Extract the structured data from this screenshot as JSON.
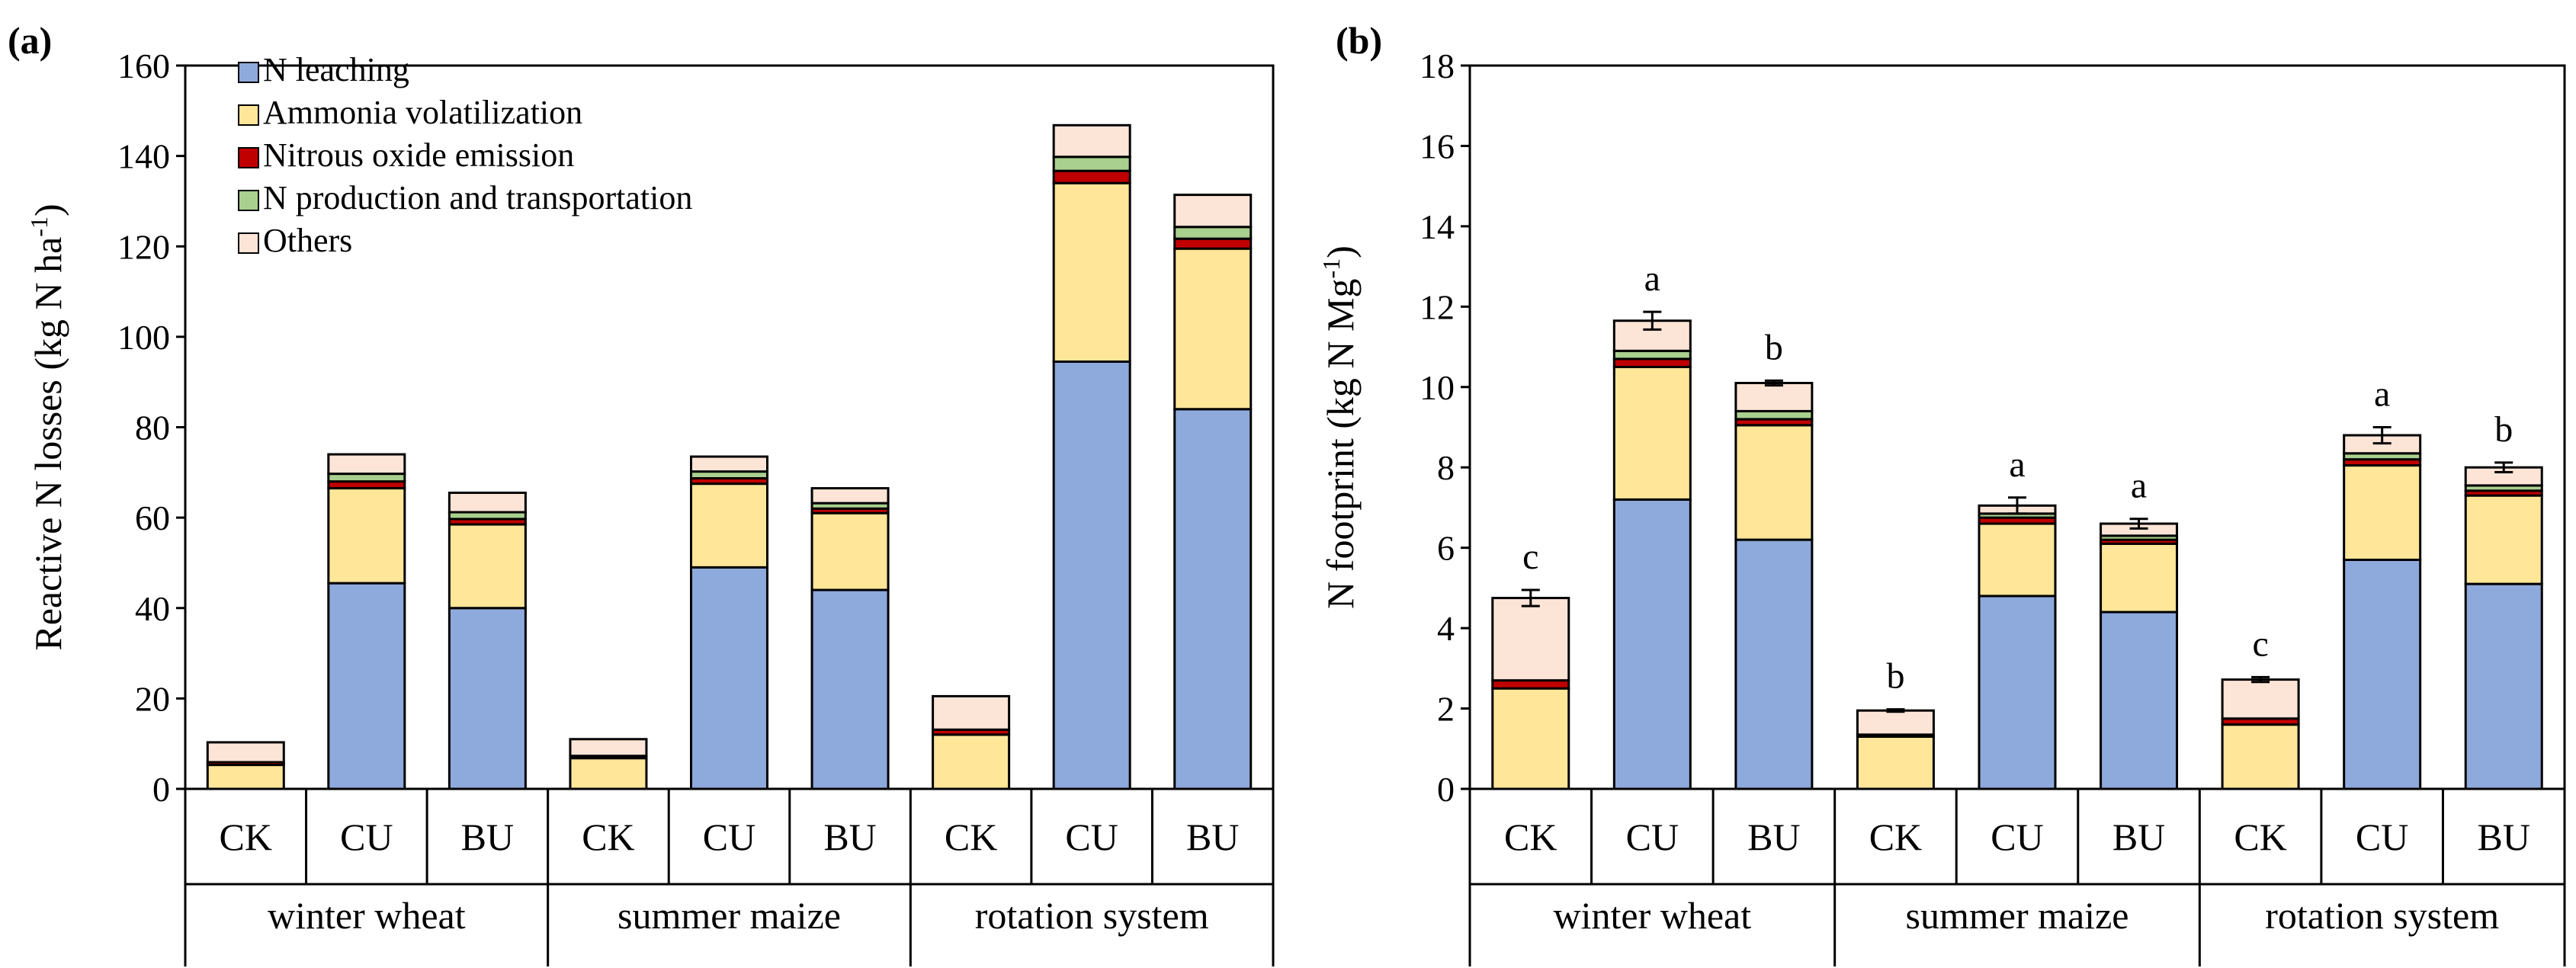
{
  "chart_data": [
    {
      "type": "bar",
      "stacked": true,
      "panel_label": "(a)",
      "title": "",
      "ylabel": "Reactive N losses (kg N ha",
      "ylabel_sup": "-1",
      "ylabel_end": ")",
      "ylim": [
        0,
        160
      ],
      "yticks": [
        0,
        20,
        40,
        60,
        80,
        100,
        120,
        140,
        160
      ],
      "groups": [
        "winter wheat",
        "summer maize",
        "rotation system"
      ],
      "categories": [
        "CK",
        "CU",
        "BU",
        "CK",
        "CU",
        "BU",
        "CK",
        "CU",
        "BU"
      ],
      "series": [
        {
          "name": "N leaching",
          "color": "#8EA9DB",
          "values": [
            0,
            45.5,
            40,
            0,
            49,
            44,
            0,
            94.5,
            84
          ]
        },
        {
          "name": "Ammonia volatilization",
          "color": "#FFE699",
          "values": [
            5.3,
            21,
            18.5,
            6.8,
            18.5,
            17,
            12,
            39.5,
            35.5
          ]
        },
        {
          "name": "Nitrous oxide emission",
          "color": "#C00000",
          "values": [
            0.6,
            1.5,
            1.2,
            0.5,
            1.2,
            1.0,
            1.1,
            2.7,
            2.2
          ]
        },
        {
          "name": "N production and transportation",
          "color": "#A9D08E",
          "values": [
            0,
            1.7,
            1.5,
            0,
            1.5,
            1.2,
            0,
            3.1,
            2.6
          ]
        },
        {
          "name": "Others",
          "color": "#FCE4D6",
          "values": [
            4.4,
            4.3,
            4.3,
            3.7,
            3.3,
            3.3,
            7.4,
            7.0,
            7.1
          ]
        }
      ],
      "legend": "top-left"
    },
    {
      "type": "bar",
      "stacked": true,
      "panel_label": "(b)",
      "title": "",
      "ylabel": "N footprint (kg N Mg",
      "ylabel_sup": "-1",
      "ylabel_end": ")",
      "ylim": [
        0,
        18
      ],
      "yticks": [
        0,
        2,
        4,
        6,
        8,
        10,
        12,
        14,
        16,
        18
      ],
      "groups": [
        "winter wheat",
        "summer maize",
        "rotation system"
      ],
      "categories": [
        "CK",
        "CU",
        "BU",
        "CK",
        "CU",
        "BU",
        "CK",
        "CU",
        "BU"
      ],
      "series": [
        {
          "name": "N leaching",
          "color": "#8EA9DB",
          "values": [
            0,
            7.2,
            6.2,
            0,
            4.8,
            4.4,
            0,
            5.7,
            5.1
          ]
        },
        {
          "name": "Ammonia volatilization",
          "color": "#FFE699",
          "values": [
            2.5,
            3.3,
            2.85,
            1.3,
            1.8,
            1.7,
            1.6,
            2.35,
            2.2
          ]
        },
        {
          "name": "Nitrous oxide emission",
          "color": "#C00000",
          "values": [
            0.2,
            0.2,
            0.15,
            0.05,
            0.15,
            0.1,
            0.15,
            0.15,
            0.12
          ]
        },
        {
          "name": "N production and transportation",
          "color": "#A9D08E",
          "values": [
            0,
            0.2,
            0.2,
            0,
            0.1,
            0.1,
            0,
            0.15,
            0.13
          ]
        },
        {
          "name": "Others",
          "color": "#FCE4D6",
          "values": [
            2.05,
            0.75,
            0.7,
            0.6,
            0.2,
            0.3,
            0.97,
            0.45,
            0.45
          ]
        }
      ],
      "error_bars": [
        0.2,
        0.22,
        0.06,
        0.03,
        0.2,
        0.12,
        0.06,
        0.2,
        0.12
      ],
      "significance_letters": [
        "c",
        "a",
        "b",
        "b",
        "a",
        "a",
        "c",
        "a",
        "b"
      ]
    }
  ]
}
